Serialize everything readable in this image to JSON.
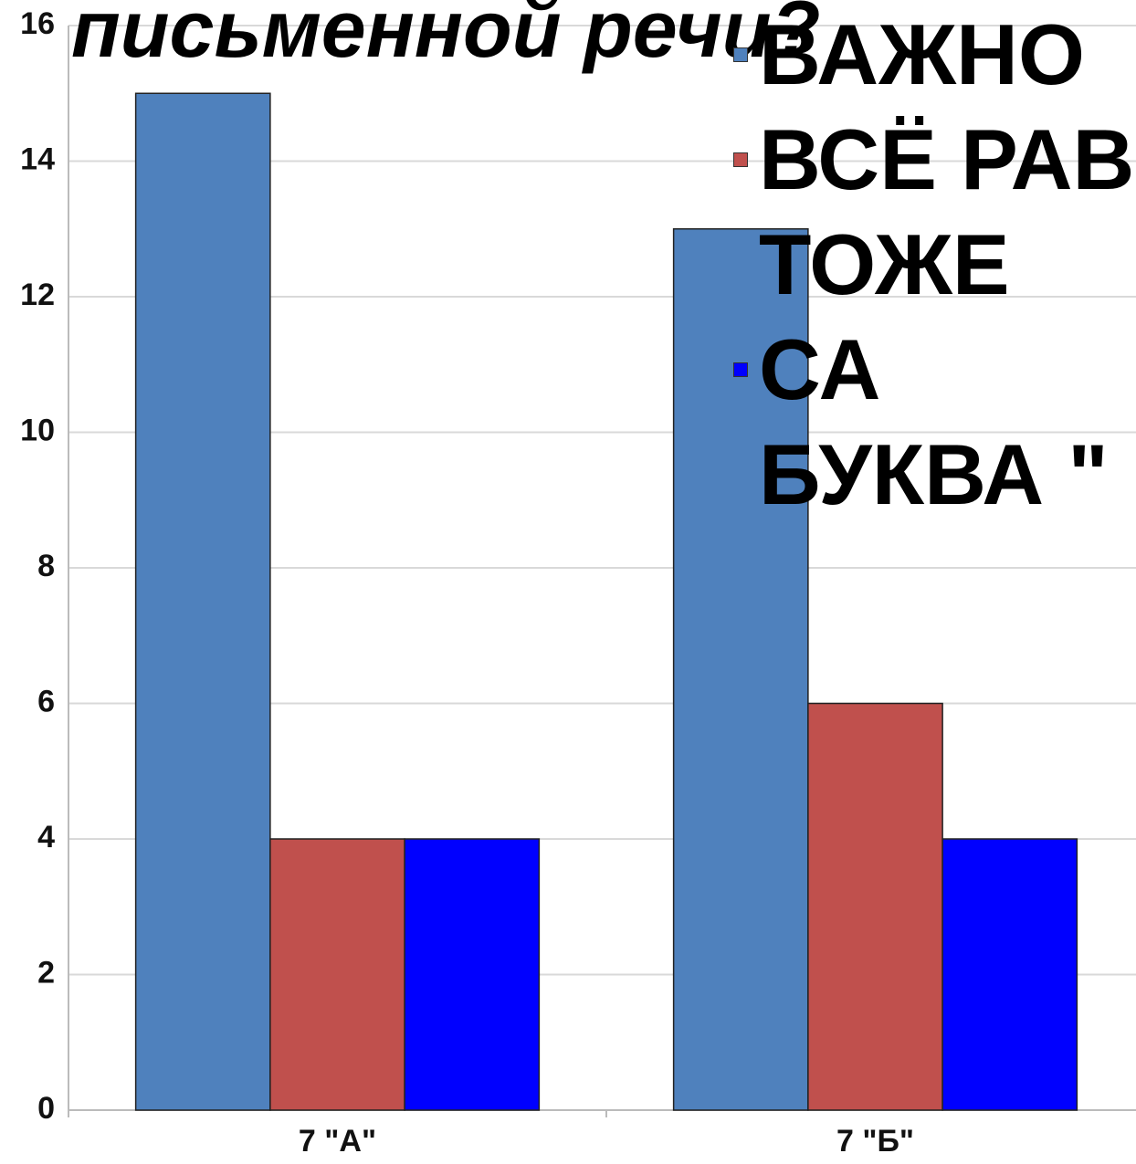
{
  "chart_data": {
    "type": "bar",
    "title": "письменной речи?",
    "categories": [
      "7 \"А\"",
      "7 \"Б\""
    ],
    "series": [
      {
        "name": "ВАЖНО",
        "color": "#4f81bd",
        "values": [
          15,
          13
        ]
      },
      {
        "name": "ВСЁ РАВ",
        "color": "#c0504d",
        "values": [
          4,
          6
        ]
      },
      {
        "name": "ТОЖЕ СА БУКВА \"",
        "color": "#0000ff",
        "values": [
          4,
          4
        ]
      }
    ],
    "ylim": [
      0,
      16
    ],
    "yticks": [
      0,
      2,
      4,
      6,
      8,
      10,
      12,
      14,
      16
    ],
    "grid": true,
    "legend": "top-right"
  }
}
